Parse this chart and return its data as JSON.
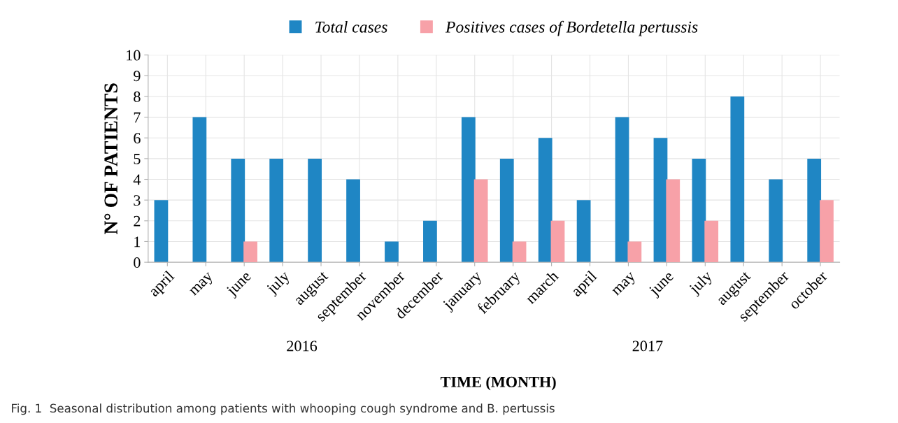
{
  "chart_data": {
    "type": "bar",
    "xlabel": "TIME (MONTH)",
    "ylabel": "N° OF PATIENTS",
    "categories": [
      "april",
      "may",
      "june",
      "july",
      "august",
      "september",
      "november",
      "december",
      "january",
      "february",
      "march",
      "april",
      "may",
      "june",
      "july",
      "august",
      "september",
      "october"
    ],
    "series": [
      {
        "name": "Total cases",
        "color": "#1f86c4",
        "values": [
          3,
          7,
          5,
          5,
          5,
          4,
          1,
          2,
          7,
          5,
          6,
          3,
          7,
          6,
          5,
          8,
          4,
          5
        ]
      },
      {
        "name": "Positives cases of Bordetella pertussis",
        "color": "#f7a1a8",
        "values": [
          null,
          null,
          1,
          null,
          null,
          null,
          null,
          null,
          4,
          1,
          2,
          null,
          1,
          4,
          2,
          null,
          null,
          3
        ]
      }
    ],
    "ylim": [
      0,
      10
    ],
    "yticks": [
      0,
      1,
      2,
      3,
      4,
      5,
      6,
      7,
      8,
      9,
      10
    ],
    "grid": true,
    "legend": "top",
    "annotations": [
      "2016",
      "2017",
      "Fig. 1  Seasonal distribution among patients with whooping cough syndrome and B. pertussis"
    ]
  }
}
